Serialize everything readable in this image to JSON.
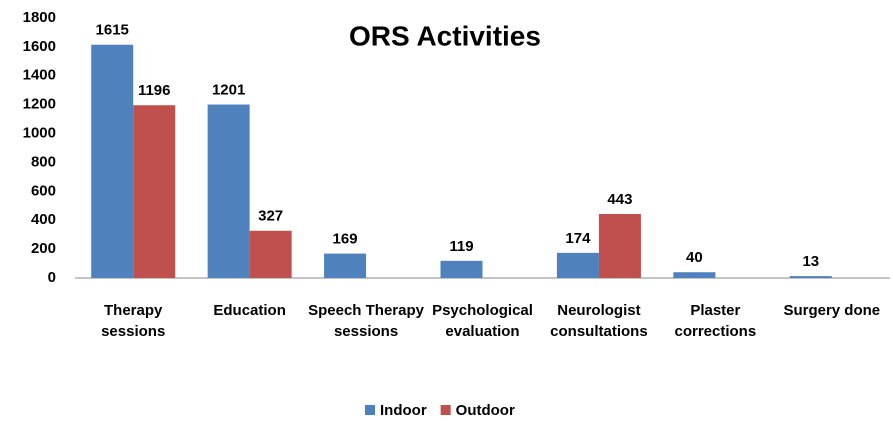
{
  "chart_data": {
    "type": "bar",
    "title": "ORS Activities",
    "categories": [
      "Therapy sessions",
      "Education",
      "Speech Therapy sessions",
      "Psychological evaluation",
      "Neurologist consultations",
      "Plaster corrections",
      "Surgery done"
    ],
    "series": [
      {
        "name": "Indoor",
        "color": "#4f81bd",
        "values": [
          1615,
          1201,
          169,
          119,
          174,
          40,
          13
        ]
      },
      {
        "name": "Outdoor",
        "color": "#c0504d",
        "values": [
          1196,
          327,
          null,
          null,
          443,
          null,
          null
        ]
      }
    ],
    "ylim": [
      0,
      1800
    ],
    "yticks": [
      0,
      200,
      400,
      600,
      800,
      1000,
      1200,
      1400,
      1600,
      1800
    ],
    "grid": false,
    "legend": "bottom"
  }
}
